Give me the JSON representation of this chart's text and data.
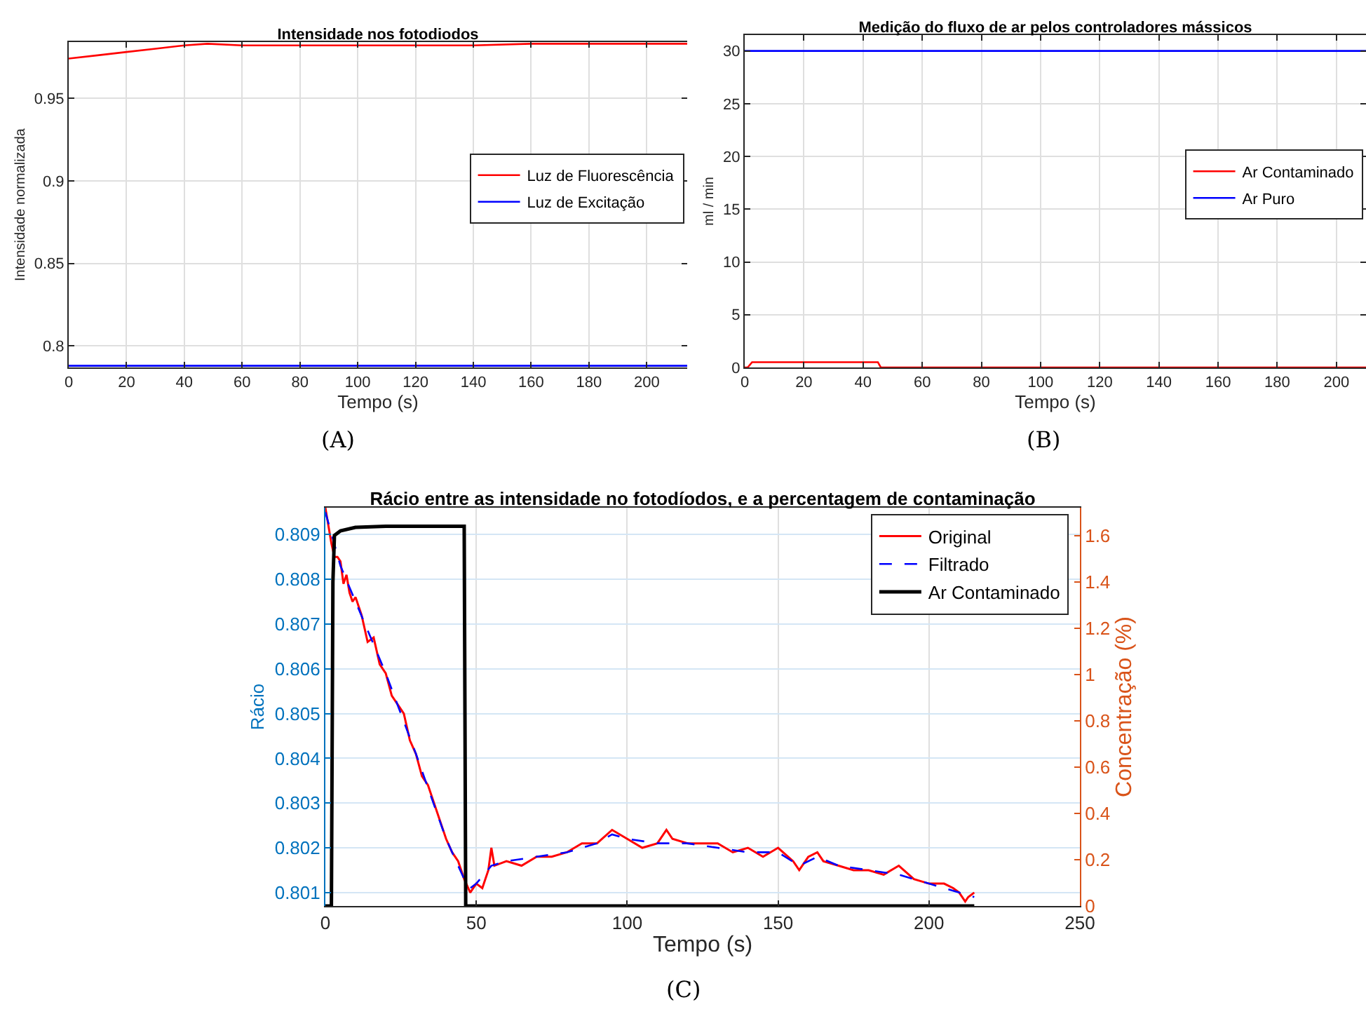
{
  "chart_data": [
    {
      "type": "line",
      "title": "Intensidade nos fotodiodos",
      "xlabel": "Tempo (s)",
      "ylabel": "Intensidade normalizada",
      "xlim": [
        0,
        214
      ],
      "xticks": [
        0,
        20,
        40,
        60,
        80,
        100,
        120,
        140,
        160,
        180,
        200
      ],
      "ylim": [
        0.787,
        0.984
      ],
      "yticks": [
        0.8,
        0.85,
        0.9,
        0.95
      ],
      "grid": true,
      "legend": "right",
      "annotations": [
        "(A)"
      ],
      "series": [
        {
          "name": "Luz de Fluorescência",
          "color": "#ff0000",
          "x": [
            0,
            10,
            20,
            30,
            40,
            48,
            60,
            80,
            100,
            120,
            140,
            160,
            180,
            200,
            214
          ],
          "values": [
            0.974,
            0.976,
            0.978,
            0.98,
            0.982,
            0.983,
            0.982,
            0.982,
            0.982,
            0.982,
            0.982,
            0.983,
            0.983,
            0.983,
            0.983
          ]
        },
        {
          "name": "Luz de Excitação",
          "color": "#0000ff",
          "x": [
            0,
            214
          ],
          "values": [
            0.788,
            0.788
          ]
        }
      ]
    },
    {
      "type": "line",
      "title": "Medição do fluxo de ar pelos controladores mássicos",
      "xlabel": "Tempo (s)",
      "ylabel": "ml / min",
      "xlim": [
        0,
        210
      ],
      "xticks": [
        0,
        20,
        40,
        60,
        80,
        100,
        120,
        140,
        160,
        180,
        200
      ],
      "ylim": [
        0,
        31.5
      ],
      "yticks": [
        0,
        5,
        10,
        15,
        20,
        25,
        30
      ],
      "grid": true,
      "legend": "right",
      "annotations": [
        "(B)"
      ],
      "series": [
        {
          "name": "Ar Contaminado",
          "color": "#ff0000",
          "x": [
            0,
            1,
            2.5,
            45,
            46,
            210
          ],
          "values": [
            0,
            0,
            0.5,
            0.5,
            0,
            0
          ]
        },
        {
          "name": "Ar Puro",
          "color": "#0000ff",
          "x": [
            0,
            210
          ],
          "values": [
            30,
            30
          ]
        }
      ]
    },
    {
      "type": "line",
      "title": "Rácio entre as intensidade no fotodíodos, e a percentagem de contaminação",
      "xlabel": "Tempo (s)",
      "ylabel": "Rácio",
      "y2label": "Concentração (%)",
      "xlim": [
        0,
        250
      ],
      "xticks": [
        0,
        50,
        100,
        150,
        200,
        250
      ],
      "ylim": [
        0.8007,
        0.8096
      ],
      "yticks": [
        0.801,
        0.802,
        0.803,
        0.804,
        0.805,
        0.806,
        0.807,
        0.808,
        0.809
      ],
      "y2lim": [
        0,
        1.72
      ],
      "y2ticks": [
        0,
        0.2,
        0.4,
        0.6,
        0.8,
        1,
        1.2,
        1.4,
        1.6
      ],
      "grid": true,
      "legend": "top right",
      "annotations": [
        "(C)"
      ],
      "series": [
        {
          "name": "Original",
          "color": "#ff0000",
          "x": [
            0,
            1,
            2,
            3,
            4,
            5,
            6,
            7,
            8,
            9,
            10,
            12,
            14,
            16,
            18,
            20,
            22,
            24,
            26,
            28,
            30,
            32,
            34,
            36,
            38,
            40,
            42,
            44,
            46,
            48,
            50,
            52,
            54,
            55,
            56,
            60,
            65,
            70,
            75,
            80,
            85,
            90,
            95,
            100,
            105,
            110,
            113,
            115,
            120,
            125,
            130,
            135,
            140,
            145,
            150,
            155,
            157,
            160,
            163,
            165,
            170,
            175,
            180,
            185,
            190,
            195,
            200,
            205,
            208,
            210,
            212,
            213,
            215
          ],
          "values": [
            0.8096,
            0.8092,
            0.8088,
            0.8085,
            0.8085,
            0.8084,
            0.8079,
            0.8081,
            0.8077,
            0.8075,
            0.8076,
            0.8072,
            0.8066,
            0.8067,
            0.8061,
            0.8059,
            0.8054,
            0.8052,
            0.805,
            0.8044,
            0.8041,
            0.8036,
            0.8034,
            0.803,
            0.8026,
            0.8022,
            0.8019,
            0.8017,
            0.8013,
            0.801,
            0.8012,
            0.8011,
            0.8015,
            0.802,
            0.8016,
            0.8017,
            0.8016,
            0.8018,
            0.8018,
            0.8019,
            0.8021,
            0.8021,
            0.8024,
            0.8022,
            0.802,
            0.8021,
            0.8024,
            0.8022,
            0.8021,
            0.8021,
            0.8021,
            0.8019,
            0.802,
            0.8018,
            0.802,
            0.8017,
            0.8015,
            0.8018,
            0.8019,
            0.8017,
            0.8016,
            0.8015,
            0.8015,
            0.8014,
            0.8016,
            0.8013,
            0.8012,
            0.8012,
            0.8011,
            0.801,
            0.8008,
            0.8009,
            0.801
          ]
        },
        {
          "name": "Filtrado",
          "color": "#0000ff",
          "line_style": "dashed",
          "x": [
            0,
            5,
            10,
            20,
            30,
            40,
            46,
            48,
            50,
            55,
            60,
            70,
            80,
            90,
            95,
            100,
            110,
            120,
            130,
            140,
            150,
            157,
            163,
            170,
            180,
            190,
            200,
            210,
            215
          ],
          "values": [
            0.8095,
            0.8083,
            0.8075,
            0.8059,
            0.8041,
            0.8022,
            0.8013,
            0.8011,
            0.8012,
            0.8016,
            0.8017,
            0.8018,
            0.8019,
            0.8021,
            0.8023,
            0.8022,
            0.8021,
            0.8021,
            0.802,
            0.8019,
            0.8019,
            0.8016,
            0.8018,
            0.8016,
            0.8015,
            0.8014,
            0.8012,
            0.801,
            0.8009
          ]
        },
        {
          "name": "Ar Contaminado",
          "color": "#000000",
          "axis": "y2",
          "x": [
            0,
            2,
            2.5,
            3,
            5,
            10,
            20,
            46,
            46.5,
            215
          ],
          "values": [
            0,
            0,
            1.4,
            1.6,
            1.62,
            1.635,
            1.64,
            1.64,
            0,
            0
          ]
        }
      ]
    }
  ]
}
